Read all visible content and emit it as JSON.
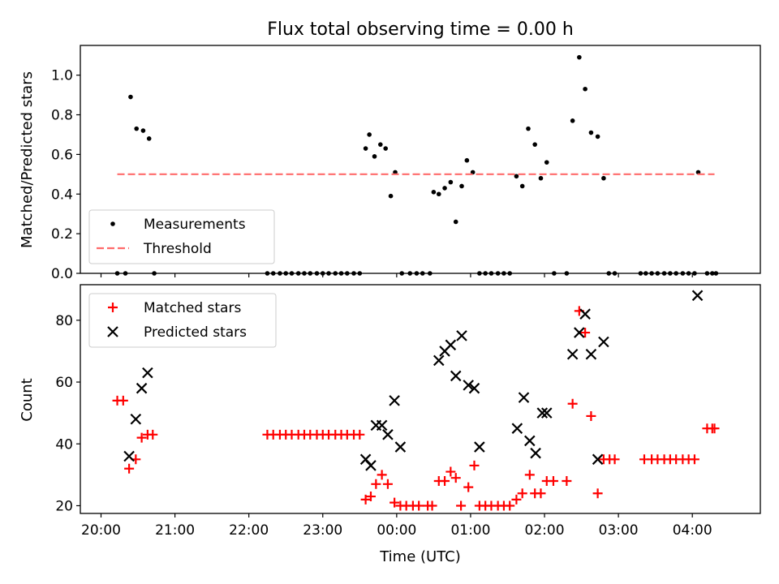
{
  "chart_data": [
    {
      "type": "scatter",
      "title": "Flux total observing time = 0.00 h",
      "ylabel": "Matched/Predicted stars",
      "xlim": [
        -0.28,
        8.92
      ],
      "ylim": [
        0,
        1.15
      ],
      "yticks": [
        "0.0",
        "0.2",
        "0.4",
        "0.6",
        "0.8",
        "1.0"
      ],
      "ytick_values": [
        0,
        0.2,
        0.4,
        0.6,
        0.8,
        1.0
      ],
      "grid": false,
      "legend_position": "lower-left",
      "series": [
        {
          "name": "Measurements",
          "marker": "dot",
          "color": "#000000",
          "x": [
            0.22,
            0.33,
            0.4,
            0.48,
            0.57,
            0.65,
            0.72,
            2.25,
            2.33,
            2.42,
            2.5,
            2.58,
            2.67,
            2.75,
            2.83,
            2.92,
            3.0,
            3.08,
            3.17,
            3.25,
            3.33,
            3.42,
            3.5,
            3.58,
            3.63,
            3.7,
            3.78,
            3.85,
            3.92,
            3.98,
            4.07,
            4.18,
            4.27,
            4.35,
            4.45,
            4.5,
            4.57,
            4.65,
            4.73,
            4.8,
            4.88,
            4.95,
            5.03,
            5.12,
            5.2,
            5.28,
            5.37,
            5.45,
            5.53,
            5.62,
            5.7,
            5.78,
            5.87,
            5.95,
            6.03,
            6.13,
            6.3,
            6.38,
            6.47,
            6.55,
            6.63,
            6.72,
            6.8,
            6.87,
            6.95,
            7.3,
            7.37,
            7.45,
            7.53,
            7.62,
            7.7,
            7.78,
            7.87,
            7.95,
            8.03,
            8.08,
            8.2,
            8.27,
            8.32
          ],
          "y": [
            0,
            0,
            0.89,
            0.73,
            0.72,
            0.68,
            0,
            0,
            0,
            0,
            0,
            0,
            0,
            0,
            0,
            0,
            0,
            0,
            0,
            0,
            0,
            0,
            0,
            0.63,
            0.7,
            0.59,
            0.65,
            0.63,
            0.39,
            0.51,
            0,
            0,
            0,
            0,
            0,
            0.41,
            0.4,
            0.43,
            0.46,
            0.26,
            0.44,
            0.57,
            0.51,
            0,
            0,
            0,
            0,
            0,
            0,
            0.49,
            0.44,
            0.73,
            0.65,
            0.48,
            0.56,
            0,
            0,
            0.77,
            1.09,
            0.93,
            0.71,
            0.69,
            0.48,
            0,
            0,
            0,
            0,
            0,
            0,
            0,
            0,
            0,
            0,
            0,
            0,
            0.51,
            0,
            0,
            0
          ]
        },
        {
          "name": "Threshold",
          "marker": "dashed-line",
          "color": "#ff6b6b",
          "x": [
            0.22,
            8.3
          ],
          "y": [
            0.5,
            0.5
          ]
        }
      ]
    },
    {
      "type": "scatter",
      "xlabel": "Time (UTC)",
      "ylabel": "Count",
      "xlim": [
        -0.28,
        8.92
      ],
      "ylim": [
        17.5,
        91.5
      ],
      "xticks": [
        "20:00",
        "21:00",
        "22:00",
        "23:00",
        "00:00",
        "01:00",
        "02:00",
        "03:00",
        "04:00"
      ],
      "xtick_values": [
        0,
        1,
        2,
        3,
        4,
        5,
        6,
        7,
        8
      ],
      "yticks": [
        "20",
        "40",
        "60",
        "80"
      ],
      "ytick_values": [
        20,
        40,
        60,
        80
      ],
      "grid": false,
      "legend_position": "upper-left",
      "series": [
        {
          "name": "Matched stars",
          "marker": "plus",
          "color": "#ff0000",
          "x": [
            0.22,
            0.3,
            0.38,
            0.47,
            0.55,
            0.63,
            0.7,
            2.25,
            2.33,
            2.42,
            2.5,
            2.58,
            2.67,
            2.75,
            2.83,
            2.92,
            3.0,
            3.08,
            3.17,
            3.25,
            3.33,
            3.42,
            3.5,
            3.58,
            3.65,
            3.72,
            3.8,
            3.88,
            3.97,
            4.05,
            4.13,
            4.22,
            4.3,
            4.42,
            4.48,
            4.57,
            4.65,
            4.73,
            4.8,
            4.87,
            4.97,
            5.05,
            5.12,
            5.2,
            5.28,
            5.37,
            5.45,
            5.53,
            5.62,
            5.7,
            5.8,
            5.87,
            5.95,
            6.03,
            6.12,
            6.3,
            6.38,
            6.47,
            6.55,
            6.63,
            6.72,
            6.8,
            6.88,
            6.95,
            7.35,
            7.45,
            7.53,
            7.62,
            7.7,
            7.78,
            7.87,
            7.95,
            8.03,
            8.2,
            8.27,
            8.3
          ],
          "y": [
            54,
            54,
            32,
            35,
            42,
            43,
            43,
            43,
            43,
            43,
            43,
            43,
            43,
            43,
            43,
            43,
            43,
            43,
            43,
            43,
            43,
            43,
            43,
            22,
            23,
            27,
            30,
            27,
            21,
            20,
            20,
            20,
            20,
            20,
            20,
            28,
            28,
            31,
            29,
            20,
            26,
            33,
            20,
            20,
            20,
            20,
            20,
            20,
            22,
            24,
            30,
            24,
            24,
            28,
            28,
            28,
            53,
            83,
            76,
            49,
            24,
            35,
            35,
            35,
            35,
            35,
            35,
            35,
            35,
            35,
            35,
            35,
            35,
            45,
            45,
            45
          ]
        },
        {
          "name": "Predicted stars",
          "marker": "x",
          "color": "#000000",
          "x": [
            0.38,
            0.47,
            0.55,
            0.63,
            3.58,
            3.65,
            3.72,
            3.8,
            3.88,
            3.97,
            4.05,
            4.57,
            4.65,
            4.73,
            4.8,
            4.88,
            4.97,
            5.05,
            5.12,
            5.63,
            5.72,
            5.8,
            5.88,
            5.97,
            6.03,
            6.38,
            6.47,
            6.55,
            6.63,
            6.72,
            6.8,
            8.07
          ],
          "y": [
            36,
            48,
            58,
            63,
            35,
            33,
            46,
            46,
            43,
            54,
            39,
            67,
            70,
            72,
            62,
            75,
            59,
            58,
            39,
            45,
            55,
            41,
            37,
            50,
            50,
            69,
            76,
            82,
            69,
            35,
            73,
            88
          ]
        }
      ]
    }
  ]
}
